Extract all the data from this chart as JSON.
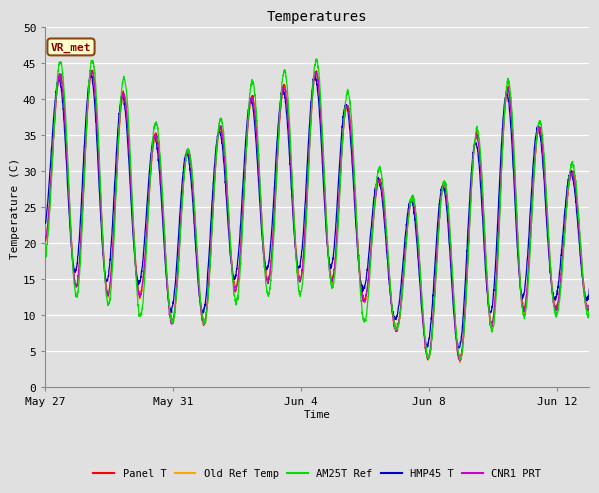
{
  "title": "Temperatures",
  "xlabel": "Time",
  "ylabel": "Temperature (C)",
  "annotation": "VR_met",
  "ylim": [
    0,
    50
  ],
  "background_color": "#e0e0e0",
  "plot_bg_color": "#e0e0e0",
  "grid_color": "#ffffff",
  "xtick_labels": [
    "May 27",
    "May 31",
    "Jun 4",
    "Jun 8",
    "Jun 12"
  ],
  "xtick_positions": [
    0,
    4,
    8,
    12,
    16
  ],
  "ytick_positions": [
    0,
    5,
    10,
    15,
    20,
    25,
    30,
    35,
    40,
    45,
    50
  ],
  "legend_entries": [
    "Panel T",
    "Old Ref Temp",
    "AM25T Ref",
    "HMP45 T",
    "CNR1 PRT"
  ],
  "line_colors": [
    "#ff0000",
    "#ffa500",
    "#00dd00",
    "#0000cc",
    "#cc00cc"
  ],
  "num_days": 17,
  "samples_per_day": 144,
  "day_maxes": [
    43,
    44,
    44,
    37,
    33,
    33,
    40,
    41,
    43,
    45,
    32,
    25,
    28,
    29,
    42,
    41,
    30
  ],
  "day_mins": [
    20,
    14,
    13,
    13,
    9,
    9,
    14,
    15,
    15,
    15,
    12,
    8,
    4,
    4,
    9,
    11,
    11
  ],
  "am25t_extra": [
    2,
    1.5,
    1.5,
    3,
    0,
    0,
    2,
    2,
    2,
    1,
    3,
    0,
    0,
    0,
    1,
    1,
    1
  ]
}
